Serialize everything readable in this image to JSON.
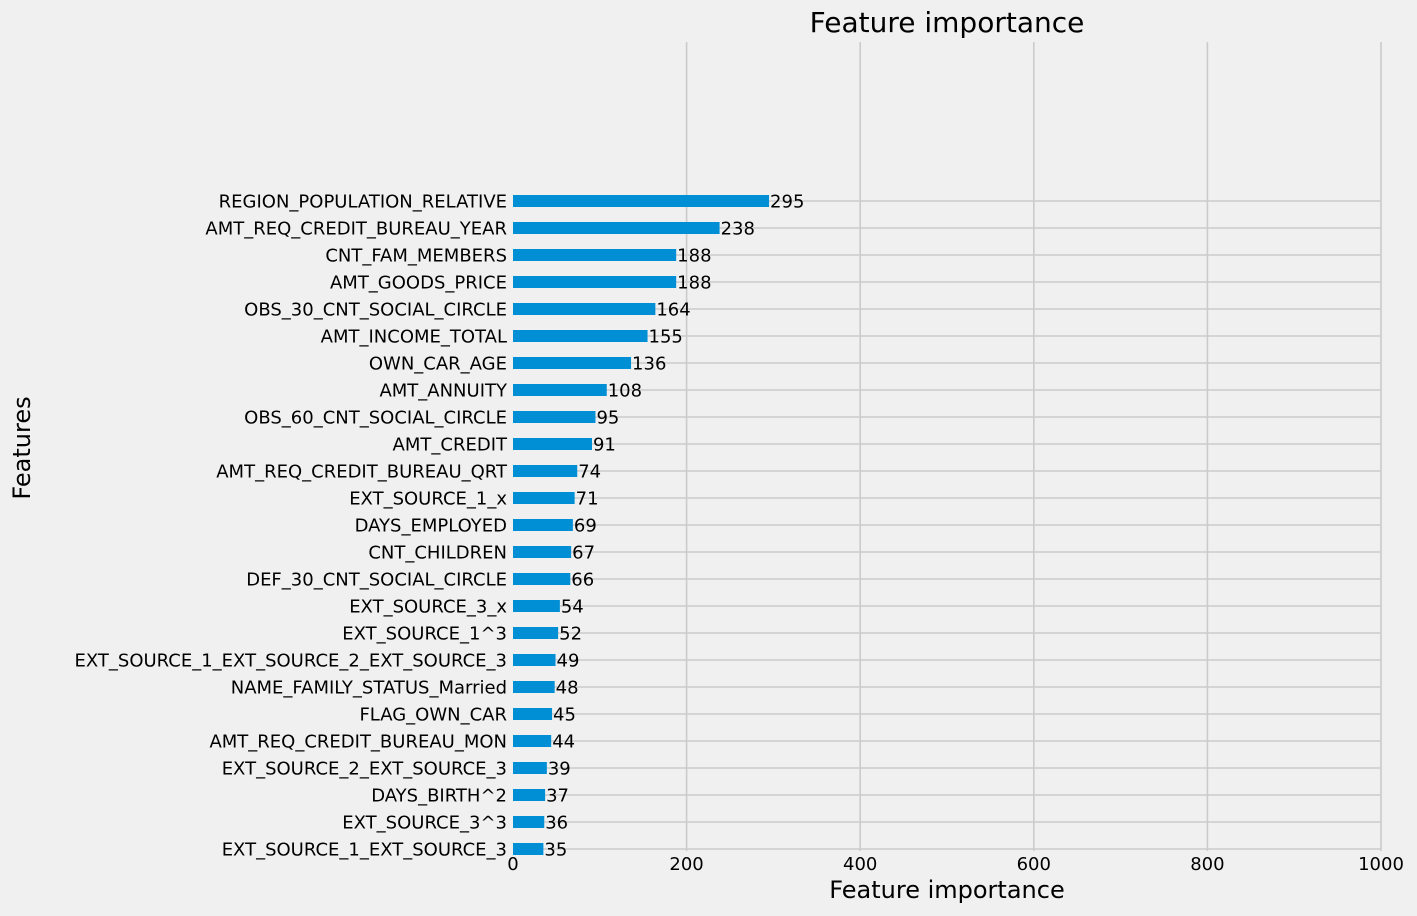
{
  "chart_data": {
    "type": "bar",
    "orientation": "horizontal",
    "title": "Feature importance",
    "xlabel": "Feature importance",
    "ylabel": "Features",
    "xlim": [
      0,
      1000
    ],
    "xticks": [
      "0",
      "200",
      "400",
      "600",
      "800",
      "1000"
    ],
    "xtick_values": [
      0,
      200,
      400,
      600,
      800,
      1000
    ],
    "grid": true,
    "bar_color": "#008fd5",
    "background_color": "#f0f0f0",
    "grid_color": "#cbcbcb",
    "categories": [
      "REGION_POPULATION_RELATIVE",
      "AMT_REQ_CREDIT_BUREAU_YEAR",
      "CNT_FAM_MEMBERS",
      "AMT_GOODS_PRICE",
      "OBS_30_CNT_SOCIAL_CIRCLE",
      "AMT_INCOME_TOTAL",
      "OWN_CAR_AGE",
      "AMT_ANNUITY",
      "OBS_60_CNT_SOCIAL_CIRCLE",
      "AMT_CREDIT",
      "AMT_REQ_CREDIT_BUREAU_QRT",
      "EXT_SOURCE_1_x",
      "DAYS_EMPLOYED",
      "CNT_CHILDREN",
      "DEF_30_CNT_SOCIAL_CIRCLE",
      "EXT_SOURCE_3_x",
      "EXT_SOURCE_1^3",
      "EXT_SOURCE_1_EXT_SOURCE_2_EXT_SOURCE_3",
      "NAME_FAMILY_STATUS_Married",
      "FLAG_OWN_CAR",
      "AMT_REQ_CREDIT_BUREAU_MON",
      "EXT_SOURCE_2_EXT_SOURCE_3",
      "DAYS_BIRTH^2",
      "EXT_SOURCE_3^3",
      "EXT_SOURCE_1_EXT_SOURCE_3"
    ],
    "values": [
      295,
      238,
      188,
      188,
      164,
      155,
      136,
      108,
      95,
      91,
      74,
      71,
      69,
      67,
      66,
      54,
      52,
      49,
      48,
      45,
      44,
      39,
      37,
      36,
      35
    ]
  }
}
